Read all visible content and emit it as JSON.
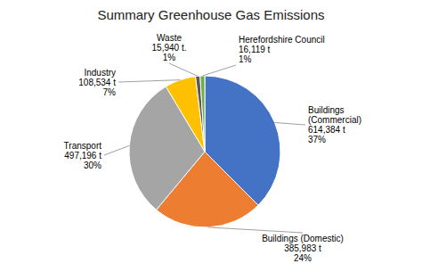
{
  "chart_data": {
    "type": "pie",
    "title": "Summary Greenhouse Gas Emissions",
    "categories": [
      "Buildings\n(Commercial)\n614,384 t\n37%",
      "Buildings (Domestic)\n385,983 t\n24%",
      "Transport\n497,196 t\n30%",
      "Industry\n108,534 t\n7%",
      "Waste\n15,940 t.\n1%",
      "Herefordshire Council\n16,119 t\n1%"
    ],
    "values": [
      614384,
      385983,
      497196,
      108534,
      15940,
      16119
    ],
    "colors": [
      "#4472C4",
      "#ED7D31",
      "#A5A5A5",
      "#FFC000",
      "#595959",
      "#70AD47"
    ]
  }
}
